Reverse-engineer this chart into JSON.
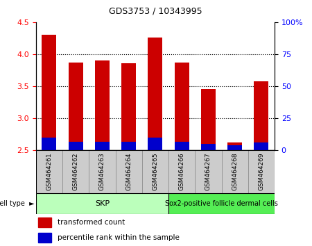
{
  "title": "GDS3753 / 10343995",
  "samples": [
    "GSM464261",
    "GSM464262",
    "GSM464263",
    "GSM464264",
    "GSM464265",
    "GSM464266",
    "GSM464267",
    "GSM464268",
    "GSM464269"
  ],
  "red_values": [
    4.3,
    3.87,
    3.9,
    3.86,
    4.26,
    3.87,
    3.46,
    2.62,
    3.57
  ],
  "blue_values": [
    2.7,
    2.63,
    2.63,
    2.63,
    2.7,
    2.63,
    2.6,
    2.57,
    2.62
  ],
  "y_min": 2.5,
  "y_max": 4.5,
  "y_ticks_left": [
    2.5,
    3.0,
    3.5,
    4.0,
    4.5
  ],
  "right_ticks": [
    0,
    25,
    50,
    75,
    100
  ],
  "red_color": "#CC0000",
  "blue_color": "#0000CC",
  "bar_width": 0.55,
  "background_color": "#ffffff",
  "legend_red": "transformed count",
  "legend_blue": "percentile rank within the sample",
  "skp_label": "SKP",
  "sox2_label": "Sox2-positive follicle dermal cells",
  "skp_color": "#bbffbb",
  "sox2_color": "#55ee55",
  "cell_type_label": "cell type",
  "grid_ticks": [
    3.0,
    3.5,
    4.0
  ]
}
